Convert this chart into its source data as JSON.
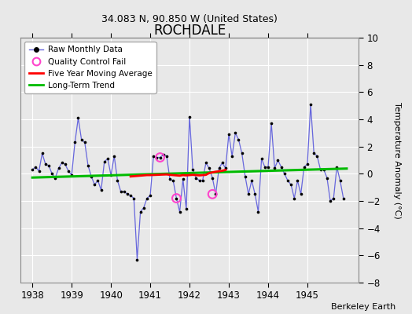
{
  "title": "ROCHDALE",
  "subtitle": "34.083 N, 90.850 W (United States)",
  "ylabel": "Temperature Anomaly (°C)",
  "credit": "Berkeley Earth",
  "xlim": [
    1937.7,
    1946.3
  ],
  "ylim": [
    -8,
    10
  ],
  "yticks": [
    -8,
    -6,
    -4,
    -2,
    0,
    2,
    4,
    6,
    8,
    10
  ],
  "xticks": [
    1938,
    1939,
    1940,
    1941,
    1942,
    1943,
    1944,
    1945
  ],
  "bg_color": "#e8e8e8",
  "grid_color": "#ffffff",
  "raw_line_color": "#6666dd",
  "raw_marker_color": "#000000",
  "ma_color": "#ff0000",
  "trend_color": "#00bb00",
  "qc_color": "#ff44cc",
  "raw_data": [
    [
      1938.0,
      0.3
    ],
    [
      1938.083,
      0.5
    ],
    [
      1938.167,
      0.2
    ],
    [
      1938.25,
      1.5
    ],
    [
      1938.333,
      0.7
    ],
    [
      1938.417,
      0.6
    ],
    [
      1938.5,
      0.0
    ],
    [
      1938.583,
      -0.3
    ],
    [
      1938.667,
      0.4
    ],
    [
      1938.75,
      0.8
    ],
    [
      1938.833,
      0.7
    ],
    [
      1938.917,
      0.2
    ],
    [
      1939.0,
      -0.1
    ],
    [
      1939.083,
      2.3
    ],
    [
      1939.167,
      4.1
    ],
    [
      1939.25,
      2.5
    ],
    [
      1939.333,
      2.3
    ],
    [
      1939.417,
      0.6
    ],
    [
      1939.5,
      -0.2
    ],
    [
      1939.583,
      -0.8
    ],
    [
      1939.667,
      -0.5
    ],
    [
      1939.75,
      -1.2
    ],
    [
      1939.833,
      0.9
    ],
    [
      1939.917,
      1.1
    ],
    [
      1940.0,
      -0.1
    ],
    [
      1940.083,
      1.3
    ],
    [
      1940.167,
      -0.5
    ],
    [
      1940.25,
      -1.3
    ],
    [
      1940.333,
      -1.3
    ],
    [
      1940.417,
      -1.5
    ],
    [
      1940.5,
      -1.6
    ],
    [
      1940.583,
      -1.8
    ],
    [
      1940.667,
      -6.3
    ],
    [
      1940.75,
      -2.8
    ],
    [
      1940.833,
      -2.5
    ],
    [
      1940.917,
      -1.8
    ],
    [
      1941.0,
      -1.6
    ],
    [
      1941.083,
      1.3
    ],
    [
      1941.167,
      1.2
    ],
    [
      1941.25,
      1.2
    ],
    [
      1941.333,
      1.4
    ],
    [
      1941.417,
      1.3
    ],
    [
      1941.5,
      -0.4
    ],
    [
      1941.583,
      -0.5
    ],
    [
      1941.667,
      -1.8
    ],
    [
      1941.75,
      -2.8
    ],
    [
      1941.833,
      -0.4
    ],
    [
      1941.917,
      -2.6
    ],
    [
      1942.0,
      4.2
    ],
    [
      1942.083,
      0.3
    ],
    [
      1942.167,
      -0.3
    ],
    [
      1942.25,
      -0.5
    ],
    [
      1942.333,
      -0.5
    ],
    [
      1942.417,
      0.8
    ],
    [
      1942.5,
      0.4
    ],
    [
      1942.583,
      -0.3
    ],
    [
      1942.667,
      -1.5
    ],
    [
      1942.75,
      0.4
    ],
    [
      1942.833,
      0.8
    ],
    [
      1942.917,
      0.4
    ],
    [
      1943.0,
      2.9
    ],
    [
      1943.083,
      1.3
    ],
    [
      1943.167,
      3.0
    ],
    [
      1943.25,
      2.5
    ],
    [
      1943.333,
      1.5
    ],
    [
      1943.417,
      -0.2
    ],
    [
      1943.5,
      -1.5
    ],
    [
      1943.583,
      -0.5
    ],
    [
      1943.667,
      -1.5
    ],
    [
      1943.75,
      -2.8
    ],
    [
      1943.833,
      1.1
    ],
    [
      1943.917,
      0.5
    ],
    [
      1944.0,
      0.5
    ],
    [
      1944.083,
      3.7
    ],
    [
      1944.167,
      0.4
    ],
    [
      1944.25,
      1.0
    ],
    [
      1944.333,
      0.5
    ],
    [
      1944.417,
      0.0
    ],
    [
      1944.5,
      -0.5
    ],
    [
      1944.583,
      -0.8
    ],
    [
      1944.667,
      -1.8
    ],
    [
      1944.75,
      -0.5
    ],
    [
      1944.833,
      -1.5
    ],
    [
      1944.917,
      0.5
    ],
    [
      1945.0,
      0.7
    ],
    [
      1945.083,
      5.1
    ],
    [
      1945.167,
      1.5
    ],
    [
      1945.25,
      1.3
    ],
    [
      1945.333,
      0.3
    ],
    [
      1945.417,
      0.3
    ],
    [
      1945.5,
      -0.3
    ],
    [
      1945.583,
      -2.0
    ],
    [
      1945.667,
      -1.8
    ],
    [
      1945.75,
      0.5
    ],
    [
      1945.833,
      -0.5
    ],
    [
      1945.917,
      -1.8
    ]
  ],
  "qc_points": [
    [
      1941.25,
      1.2
    ],
    [
      1941.667,
      -1.8
    ],
    [
      1942.583,
      -1.5
    ]
  ],
  "ma_data": [
    [
      1940.5,
      -0.2
    ],
    [
      1940.583,
      -0.18
    ],
    [
      1940.667,
      -0.16
    ],
    [
      1940.75,
      -0.14
    ],
    [
      1940.833,
      -0.12
    ],
    [
      1940.917,
      -0.1
    ],
    [
      1941.0,
      -0.1
    ],
    [
      1941.083,
      -0.09
    ],
    [
      1941.167,
      -0.08
    ],
    [
      1941.25,
      -0.07
    ],
    [
      1941.333,
      -0.06
    ],
    [
      1941.417,
      -0.05
    ],
    [
      1941.5,
      -0.08
    ],
    [
      1941.583,
      -0.1
    ],
    [
      1941.667,
      -0.12
    ],
    [
      1941.75,
      -0.14
    ],
    [
      1941.833,
      -0.1
    ],
    [
      1941.917,
      -0.12
    ],
    [
      1942.0,
      -0.1
    ],
    [
      1942.083,
      -0.08
    ],
    [
      1942.167,
      -0.1
    ],
    [
      1942.25,
      -0.12
    ],
    [
      1942.333,
      -0.1
    ],
    [
      1942.417,
      -0.08
    ],
    [
      1942.5,
      0.05
    ],
    [
      1942.583,
      0.1
    ],
    [
      1942.667,
      0.15
    ],
    [
      1942.75,
      0.18
    ],
    [
      1942.833,
      0.22
    ],
    [
      1942.917,
      0.28
    ]
  ],
  "trend_x": [
    1938.0,
    1946.0
  ],
  "trend_y": [
    -0.28,
    0.38
  ]
}
